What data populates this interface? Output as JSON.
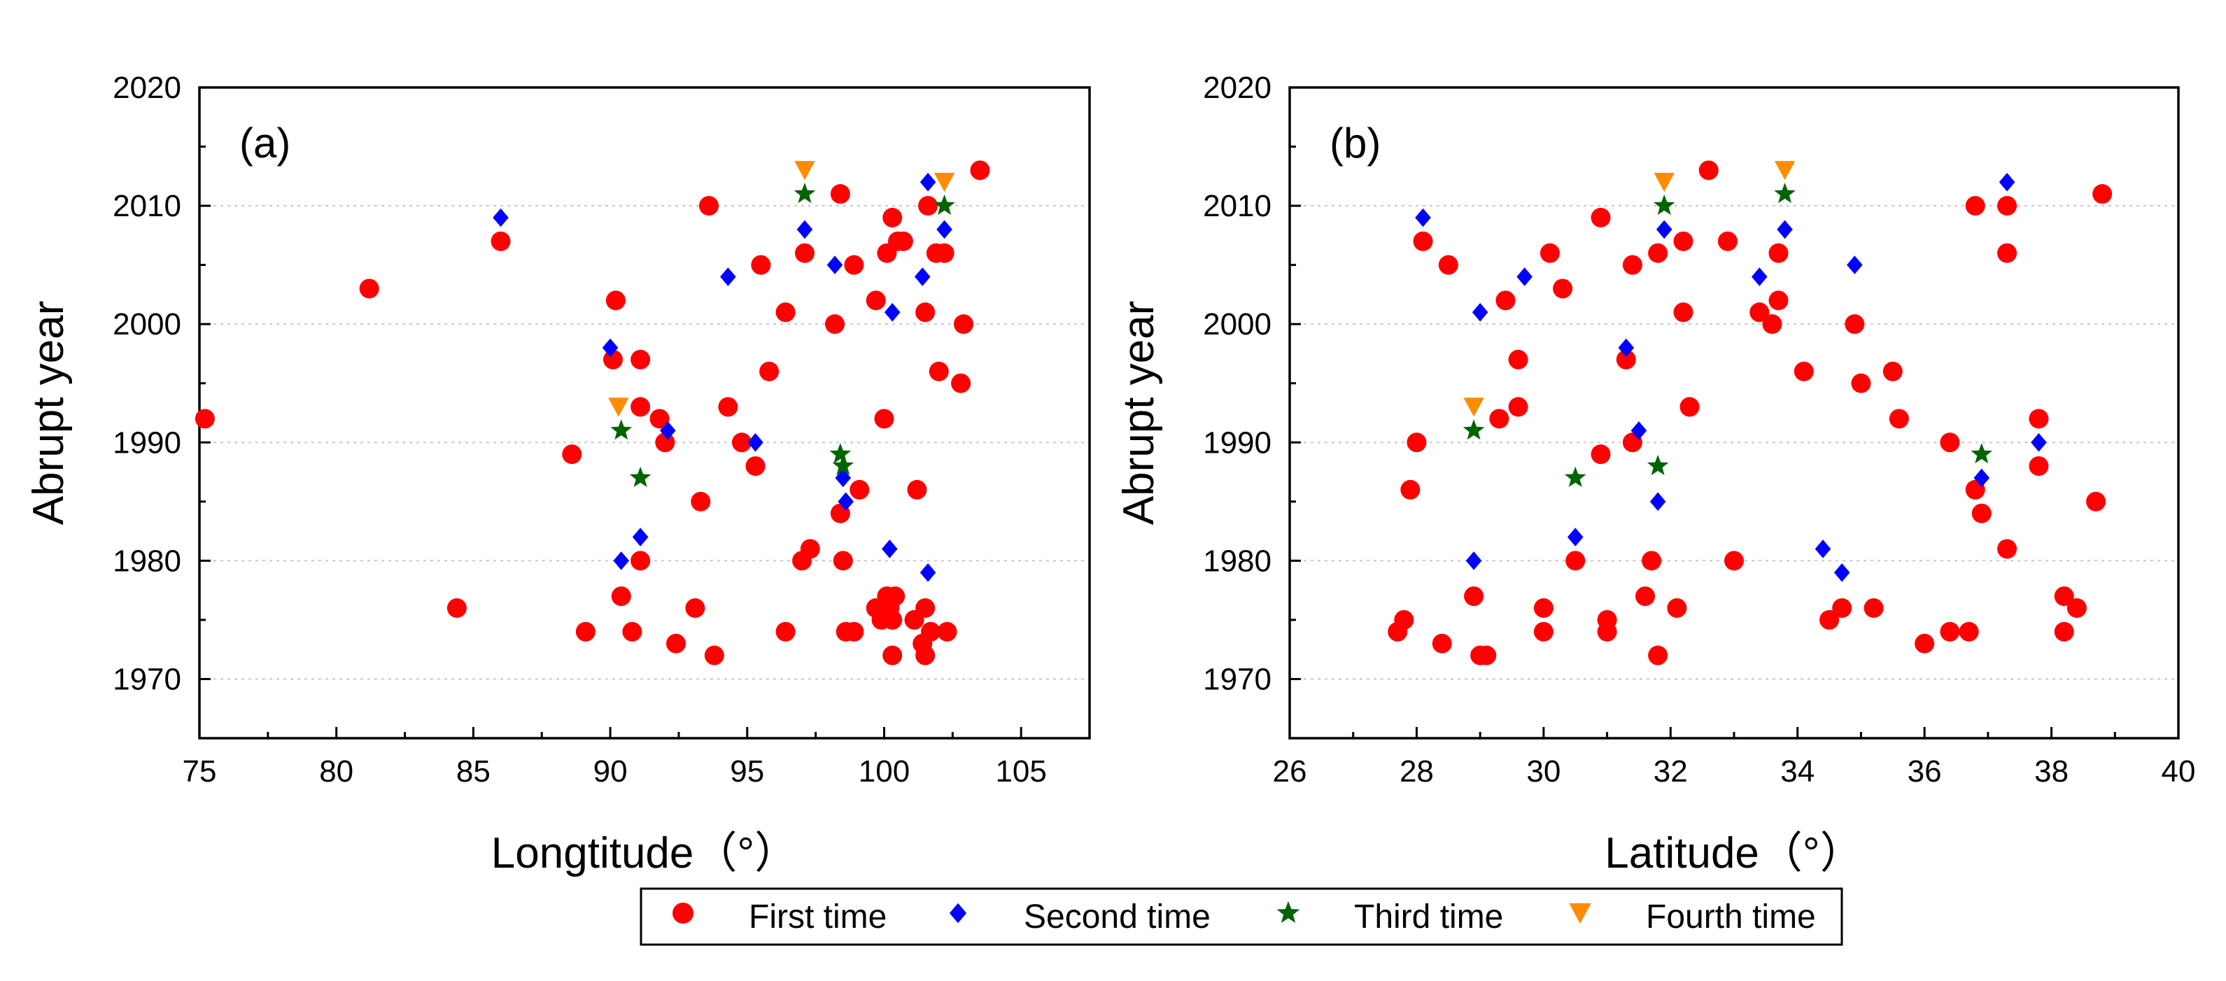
{
  "legend": {
    "items": [
      {
        "label": "First time",
        "color": "#ff0000",
        "marker": "circle-icon"
      },
      {
        "label": "Second time",
        "color": "#0000ff",
        "marker": "diamond-icon"
      },
      {
        "label": "Third time",
        "color": "#006400",
        "marker": "star-icon"
      },
      {
        "label": "Fourth time",
        "color": "#ff8c00",
        "marker": "triangle-down-icon"
      }
    ]
  },
  "chart_data": [
    {
      "type": "scatter",
      "panel_label": "(a)",
      "xlabel": "Longtitude（°）",
      "ylabel": "Abrupt year",
      "xlim": [
        75,
        107.5
      ],
      "ylim": [
        1965,
        2020
      ],
      "xticks": [
        75,
        80,
        85,
        90,
        95,
        100,
        105
      ],
      "yticks": [
        1970,
        1980,
        1990,
        2000,
        2010,
        2020
      ],
      "grid": "horizontal-dotted",
      "series": [
        {
          "name": "First time",
          "points": [
            [
              75.2,
              1992
            ],
            [
              81.2,
              2003
            ],
            [
              84.4,
              1976
            ],
            [
              86,
              2007
            ],
            [
              88.6,
              1989
            ],
            [
              89.1,
              1974
            ],
            [
              90.1,
              1997
            ],
            [
              90.2,
              2002
            ],
            [
              90.4,
              1977
            ],
            [
              90.8,
              1974
            ],
            [
              91.1,
              1980
            ],
            [
              91.1,
              1993
            ],
            [
              91.1,
              1997
            ],
            [
              91.8,
              1992
            ],
            [
              92,
              1990
            ],
            [
              92.4,
              1973
            ],
            [
              93.1,
              1976
            ],
            [
              93.3,
              1985
            ],
            [
              93.6,
              2010
            ],
            [
              93.8,
              1972
            ],
            [
              94.3,
              1993
            ],
            [
              94.8,
              1990
            ],
            [
              95.3,
              1988
            ],
            [
              95.5,
              2005
            ],
            [
              95.8,
              1996
            ],
            [
              96.4,
              1974
            ],
            [
              96.4,
              2001
            ],
            [
              97,
              1980
            ],
            [
              97.1,
              2006
            ],
            [
              97.3,
              1981
            ],
            [
              98.2,
              2000
            ],
            [
              98.4,
              1984
            ],
            [
              98.4,
              2011
            ],
            [
              98.5,
              1980
            ],
            [
              98.6,
              1974
            ],
            [
              98.9,
              2005
            ],
            [
              98.9,
              1974
            ],
            [
              99.1,
              1986
            ],
            [
              99.7,
              2002
            ],
            [
              99.7,
              1976
            ],
            [
              99.9,
              1975
            ],
            [
              100,
              1992
            ],
            [
              100.1,
              1977
            ],
            [
              100.1,
              2006
            ],
            [
              100.2,
              1976
            ],
            [
              100.3,
              2009
            ],
            [
              100.3,
              1975
            ],
            [
              100.3,
              1972
            ],
            [
              100.4,
              1977
            ],
            [
              100.5,
              2007
            ],
            [
              100.7,
              2007
            ],
            [
              101.1,
              1975
            ],
            [
              101.2,
              1986
            ],
            [
              101.4,
              1973
            ],
            [
              101.5,
              2001
            ],
            [
              101.5,
              1976
            ],
            [
              101.5,
              1972
            ],
            [
              101.6,
              2010
            ],
            [
              101.7,
              1974
            ],
            [
              101.9,
              2006
            ],
            [
              102,
              1996
            ],
            [
              102.2,
              2006
            ],
            [
              102.3,
              1974
            ],
            [
              102.8,
              1995
            ],
            [
              102.9,
              2000
            ],
            [
              103.5,
              2013
            ]
          ]
        },
        {
          "name": "Second time",
          "points": [
            [
              86,
              2009
            ],
            [
              90,
              1998
            ],
            [
              90.4,
              1980
            ],
            [
              91.1,
              1982
            ],
            [
              92.1,
              1991
            ],
            [
              94.3,
              2004
            ],
            [
              95.3,
              1990
            ],
            [
              97.1,
              2008
            ],
            [
              98.2,
              2005
            ],
            [
              98.5,
              1987
            ],
            [
              98.6,
              1985
            ],
            [
              100.2,
              1981
            ],
            [
              100.3,
              2001
            ],
            [
              101.4,
              2004
            ],
            [
              101.6,
              2012
            ],
            [
              101.6,
              1979
            ],
            [
              102.2,
              2008
            ]
          ]
        },
        {
          "name": "Third time",
          "points": [
            [
              90.4,
              1991
            ],
            [
              91.1,
              1987
            ],
            [
              97.1,
              2011
            ],
            [
              98.4,
              1989
            ],
            [
              98.5,
              1988
            ],
            [
              102.2,
              2010
            ]
          ]
        },
        {
          "name": "Fourth time",
          "points": [
            [
              90.3,
              1993
            ],
            [
              97.1,
              2013
            ],
            [
              102.2,
              2012
            ]
          ]
        }
      ]
    },
    {
      "type": "scatter",
      "panel_label": "(b)",
      "xlabel": "Latitude（°）",
      "ylabel": "Abrupt year",
      "xlim": [
        26,
        40
      ],
      "ylim": [
        1965,
        2020
      ],
      "xticks": [
        26,
        28,
        30,
        32,
        34,
        36,
        38,
        40
      ],
      "yticks": [
        1970,
        1980,
        1990,
        2000,
        2010,
        2020
      ],
      "grid": "horizontal-dotted",
      "series": [
        {
          "name": "First time",
          "points": [
            [
              27.7,
              1974
            ],
            [
              27.8,
              1975
            ],
            [
              27.9,
              1986
            ],
            [
              28,
              1990
            ],
            [
              28.1,
              2007
            ],
            [
              28.4,
              1973
            ],
            [
              28.5,
              2005
            ],
            [
              28.9,
              1977
            ],
            [
              29,
              1972
            ],
            [
              29.1,
              1972
            ],
            [
              29.3,
              1992
            ],
            [
              29.4,
              2002
            ],
            [
              29.6,
              1993
            ],
            [
              29.6,
              1997
            ],
            [
              30,
              1976
            ],
            [
              30,
              1974
            ],
            [
              30.1,
              2006
            ],
            [
              30.3,
              2003
            ],
            [
              30.5,
              1980
            ],
            [
              30.9,
              2009
            ],
            [
              30.9,
              1989
            ],
            [
              31,
              1975
            ],
            [
              31,
              1974
            ],
            [
              31.3,
              1997
            ],
            [
              31.4,
              2005
            ],
            [
              31.4,
              1990
            ],
            [
              31.6,
              1977
            ],
            [
              31.7,
              1980
            ],
            [
              31.8,
              2006
            ],
            [
              31.8,
              1972
            ],
            [
              32.1,
              1976
            ],
            [
              32.2,
              2001
            ],
            [
              32.2,
              2007
            ],
            [
              32.3,
              1993
            ],
            [
              32.6,
              2013
            ],
            [
              32.9,
              2007
            ],
            [
              33,
              1980
            ],
            [
              33.4,
              2001
            ],
            [
              33.6,
              2000
            ],
            [
              33.7,
              2002
            ],
            [
              33.7,
              2006
            ],
            [
              34.1,
              1996
            ],
            [
              34.5,
              1975
            ],
            [
              34.7,
              1976
            ],
            [
              34.9,
              2000
            ],
            [
              35,
              1995
            ],
            [
              35.2,
              1976
            ],
            [
              35.5,
              1996
            ],
            [
              35.6,
              1992
            ],
            [
              36,
              1973
            ],
            [
              36.4,
              1990
            ],
            [
              36.4,
              1974
            ],
            [
              36.7,
              1974
            ],
            [
              36.8,
              1986
            ],
            [
              36.8,
              2010
            ],
            [
              36.9,
              1984
            ],
            [
              37.3,
              1981
            ],
            [
              37.3,
              2006
            ],
            [
              37.3,
              2010
            ],
            [
              37.8,
              1992
            ],
            [
              37.8,
              1988
            ],
            [
              38.2,
              1977
            ],
            [
              38.2,
              1974
            ],
            [
              38.4,
              1976
            ],
            [
              38.7,
              1985
            ],
            [
              38.8,
              2011
            ]
          ]
        },
        {
          "name": "Second time",
          "points": [
            [
              28.1,
              2009
            ],
            [
              28.9,
              1980
            ],
            [
              29,
              2001
            ],
            [
              29.7,
              2004
            ],
            [
              30.5,
              1982
            ],
            [
              31.3,
              1998
            ],
            [
              31.5,
              1991
            ],
            [
              31.8,
              1985
            ],
            [
              31.9,
              2008
            ],
            [
              33.4,
              2004
            ],
            [
              33.8,
              2008
            ],
            [
              34.4,
              1981
            ],
            [
              34.7,
              1979
            ],
            [
              34.9,
              2005
            ],
            [
              36.9,
              1987
            ],
            [
              37.3,
              2012
            ],
            [
              37.8,
              1990
            ]
          ]
        },
        {
          "name": "Third time",
          "points": [
            [
              28.9,
              1991
            ],
            [
              30.5,
              1987
            ],
            [
              31.8,
              1988
            ],
            [
              31.9,
              2010
            ],
            [
              33.8,
              2011
            ],
            [
              36.9,
              1989
            ]
          ]
        },
        {
          "name": "Fourth time",
          "points": [
            [
              28.9,
              1993
            ],
            [
              31.9,
              2012
            ],
            [
              33.8,
              2013
            ]
          ]
        }
      ]
    }
  ]
}
